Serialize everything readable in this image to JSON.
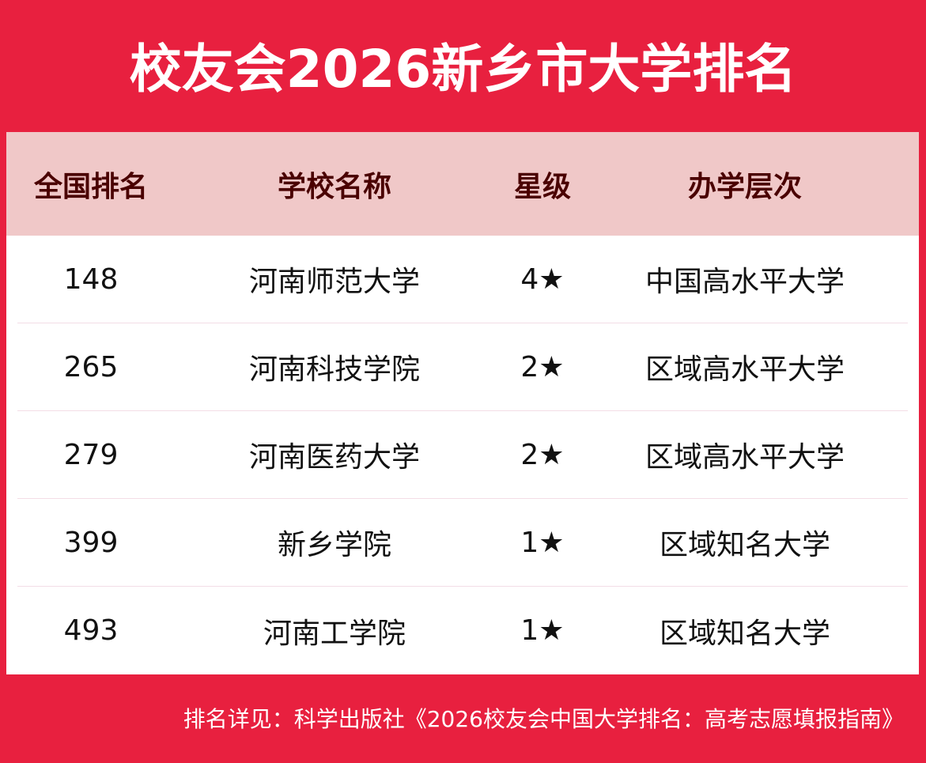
{
  "title": "校友会2026新乡市大学排名",
  "headers": [
    "全国排名",
    "学校名称",
    "星级",
    "办学层次"
  ],
  "rows": [
    [
      "148",
      "河南师范大学",
      "4★",
      "中国高水平大学"
    ],
    [
      "265",
      "河南科技学院",
      "2★",
      "区域高水平大学"
    ],
    [
      "279",
      "河南医药大学",
      "2★",
      "区域高水平大学"
    ],
    [
      "399",
      "新乡学院",
      "1★",
      "区域知名大学"
    ],
    [
      "493",
      "河南工学院",
      "1★",
      "区域知名大学"
    ]
  ],
  "footer": "排名详见：科学出版社《2026校友会中国大学排名：高考志愿填报指南》",
  "colors": {
    "background": "#E8203F",
    "header_bg": "#F0C8C8",
    "header_text": "#4A0000"
  }
}
